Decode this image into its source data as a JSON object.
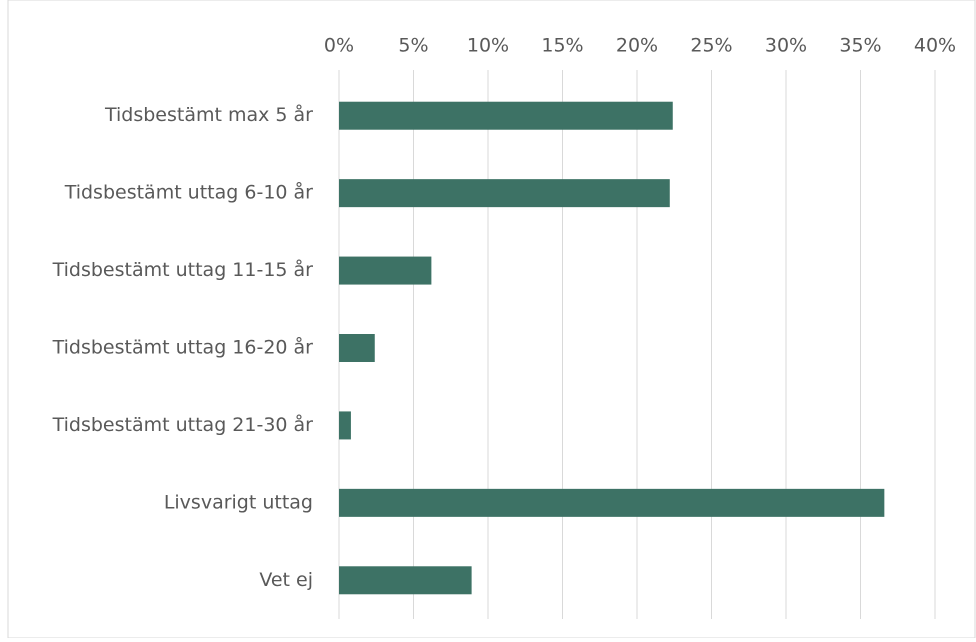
{
  "chart_data": {
    "type": "bar",
    "orientation": "horizontal",
    "categories": [
      "Tidsbestämt max 5 år",
      "Tidsbestämt uttag 6-10 år",
      "Tidsbestämt uttag 11-15 år",
      "Tidsbestämt uttag 16-20 år",
      "Tidsbestämt uttag 21-30 år",
      "Livsvarigt uttag",
      "Vet ej"
    ],
    "values": [
      22.4,
      22.2,
      6.2,
      2.4,
      0.8,
      36.6,
      8.9
    ],
    "color": "#3d7265",
    "xlim": [
      0,
      40
    ],
    "xticks": [
      {
        "value": 0,
        "label": "0%"
      },
      {
        "value": 5,
        "label": "5%"
      },
      {
        "value": 10,
        "label": "10%"
      },
      {
        "value": 15,
        "label": "15%"
      },
      {
        "value": 20,
        "label": "20%"
      },
      {
        "value": 25,
        "label": "25%"
      },
      {
        "value": 30,
        "label": "30%"
      },
      {
        "value": 35,
        "label": "35%"
      },
      {
        "value": 40,
        "label": "40%"
      }
    ],
    "grid": true
  }
}
